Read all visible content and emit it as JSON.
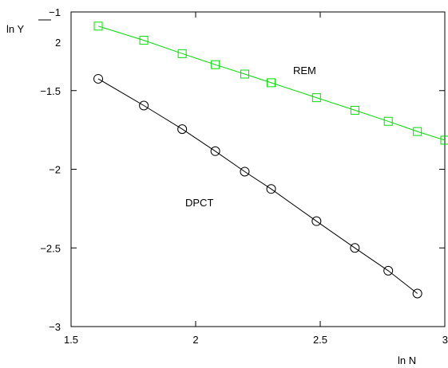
{
  "chart_data": {
    "type": "line",
    "xlabel": "ln N",
    "ylabel": {
      "main": "ln Y",
      "subscript": "2"
    },
    "xlim": [
      1.5,
      3.0
    ],
    "ylim": [
      -3.0,
      -1.0
    ],
    "xticks": [
      1.5,
      2.0,
      2.5,
      3.0
    ],
    "xtick_labels": [
      "1.5",
      "2",
      "2.5",
      "3"
    ],
    "yticks": [
      -3.0,
      -2.5,
      -2.0,
      -1.5,
      -1.0
    ],
    "ytick_labels": [
      "−3",
      "−2.5",
      "−2",
      "−1.5",
      "−1"
    ],
    "grid": false,
    "series": [
      {
        "name": "REM",
        "color": "#00e000",
        "marker": "square",
        "x": [
          1.609,
          1.792,
          1.946,
          2.079,
          2.197,
          2.303,
          2.485,
          2.639,
          2.773,
          2.89,
          3.0
        ],
        "y": [
          -1.09,
          -1.18,
          -1.265,
          -1.335,
          -1.395,
          -1.45,
          -1.545,
          -1.625,
          -1.695,
          -1.76,
          -1.815
        ]
      },
      {
        "name": "DPCT",
        "color": "#000000",
        "marker": "circle",
        "x": [
          1.609,
          1.792,
          1.946,
          2.079,
          2.197,
          2.303,
          2.485,
          2.639,
          2.773,
          2.89
        ],
        "y": [
          -1.425,
          -1.595,
          -1.745,
          -1.885,
          -2.015,
          -2.125,
          -2.33,
          -2.5,
          -2.645,
          -2.79
        ]
      }
    ],
    "annotations": [
      {
        "text": "REM",
        "series": "REM"
      },
      {
        "text": "DPCT",
        "series": "DPCT"
      }
    ]
  }
}
